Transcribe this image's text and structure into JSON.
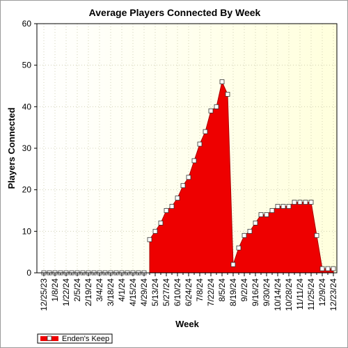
{
  "chart_data": {
    "type": "area",
    "title": "Average Players Connected By Week",
    "xlabel": "Week",
    "ylabel": "Players Connected",
    "ylim": [
      0,
      60
    ],
    "yticks": [
      0,
      10,
      20,
      30,
      40,
      50,
      60
    ],
    "grid": true,
    "legend_position": "bottom-left",
    "colors": {
      "series_fill": "#ee0000",
      "series_edge": "#aa0000",
      "marker_fill": "#ffffff",
      "plot_bg_left": "#ffffff",
      "plot_bg_right": "#ffffdd",
      "grid": "#c8c8a8"
    },
    "x_tick_labels": [
      "12/25/23",
      "1/8/24",
      "1/22/24",
      "2/5/24",
      "2/19/24",
      "3/4/24",
      "3/18/24",
      "4/1/24",
      "4/15/24",
      "4/29/24",
      "5/13/24",
      "5/27/24",
      "6/10/24",
      "6/24/24",
      "7/8/24",
      "7/22/24",
      "8/5/24",
      "8/19/24",
      "9/2/24",
      "9/16/24",
      "9/30/24",
      "10/14/24",
      "10/28/24",
      "11/11/24",
      "11/25/24",
      "12/9/24",
      "12/23/24"
    ],
    "x_start": "12/25/23",
    "x_step_days": 7,
    "series": [
      {
        "name": "Enden's Keep",
        "values": [
          0,
          0,
          0,
          0,
          0,
          0,
          0,
          0,
          0,
          0,
          0,
          0,
          0,
          0,
          0,
          0,
          0,
          0,
          0,
          8,
          10,
          12,
          15,
          16,
          18,
          21,
          23,
          27,
          31,
          34,
          39,
          40,
          46,
          43,
          2,
          6,
          9,
          10,
          12,
          14,
          14,
          15,
          16,
          16,
          16,
          17,
          17,
          17,
          17,
          9,
          1,
          1,
          1
        ]
      }
    ]
  }
}
